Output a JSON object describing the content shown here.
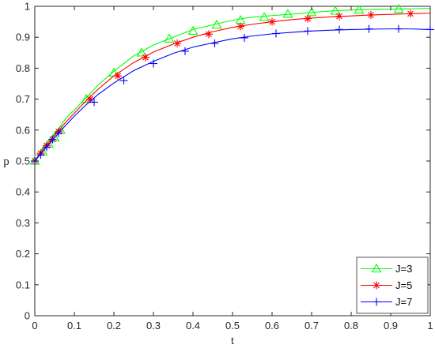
{
  "chart_data": {
    "type": "line",
    "title": "",
    "xlabel": "t",
    "ylabel": "p",
    "xlim": [
      0,
      1
    ],
    "ylim": [
      0,
      1
    ],
    "xticks": [
      0,
      0.1,
      0.2,
      0.3,
      0.4,
      0.5,
      0.6,
      0.7,
      0.8,
      0.9,
      1
    ],
    "xtick_labels": [
      "0",
      "0.1",
      "0.2",
      "0.3",
      "0.4",
      "0.5",
      "0.6",
      "0.7",
      "0.8",
      "0.9",
      "1"
    ],
    "yticks": [
      0,
      0.1,
      0.2,
      0.3,
      0.4,
      0.5,
      0.6,
      0.7,
      0.8,
      0.9,
      1
    ],
    "ytick_labels": [
      "0",
      "0.1",
      "0.2",
      "0.3",
      "0.4",
      "0.5",
      "0.6",
      "0.7",
      "0.8",
      "0.9",
      "1"
    ],
    "grid": false,
    "legend_position": "bottom-right",
    "series": [
      {
        "name": "J=3",
        "color": "#00ff00",
        "marker": "triangle",
        "line_points": {
          "x": [
            0,
            0.01,
            0.02,
            0.03,
            0.04,
            0.05,
            0.06,
            0.08,
            0.1,
            0.13,
            0.16,
            0.2,
            0.25,
            0.3,
            0.35,
            0.4,
            0.45,
            0.5,
            0.55,
            0.6,
            0.65,
            0.7,
            0.75,
            0.8,
            0.85,
            0.9,
            0.95,
            1
          ],
          "y": [
            0.5,
            0.52,
            0.54,
            0.56,
            0.575,
            0.59,
            0.605,
            0.64,
            0.665,
            0.705,
            0.745,
            0.79,
            0.84,
            0.875,
            0.9,
            0.925,
            0.94,
            0.955,
            0.965,
            0.97,
            0.975,
            0.98,
            0.985,
            0.988,
            0.99,
            0.991,
            0.992,
            0.993
          ]
        },
        "markers": {
          "x": [
            0,
            0.02,
            0.035,
            0.05,
            0.065,
            0.13,
            0.2,
            0.27,
            0.34,
            0.4,
            0.46,
            0.52,
            0.58,
            0.64,
            0.7,
            0.76,
            0.82,
            0.92
          ],
          "y": [
            0.5,
            0.53,
            0.555,
            0.575,
            0.6,
            0.7,
            0.785,
            0.85,
            0.895,
            0.92,
            0.94,
            0.955,
            0.965,
            0.975,
            0.98,
            0.985,
            0.988,
            0.991
          ]
        }
      },
      {
        "name": "J=5",
        "color": "#ff0000",
        "marker": "asterisk",
        "line_points": {
          "x": [
            0,
            0.01,
            0.02,
            0.03,
            0.04,
            0.05,
            0.06,
            0.08,
            0.1,
            0.13,
            0.16,
            0.2,
            0.25,
            0.3,
            0.35,
            0.4,
            0.45,
            0.5,
            0.55,
            0.6,
            0.65,
            0.7,
            0.75,
            0.8,
            0.85,
            0.9,
            0.95,
            1
          ],
          "y": [
            0.5,
            0.518,
            0.535,
            0.552,
            0.568,
            0.583,
            0.598,
            0.628,
            0.655,
            0.695,
            0.732,
            0.775,
            0.818,
            0.852,
            0.878,
            0.9,
            0.918,
            0.932,
            0.942,
            0.95,
            0.957,
            0.962,
            0.966,
            0.969,
            0.972,
            0.974,
            0.976,
            0.978
          ]
        },
        "markers": {
          "x": [
            0,
            0.015,
            0.03,
            0.045,
            0.06,
            0.14,
            0.21,
            0.28,
            0.36,
            0.44,
            0.52,
            0.6,
            0.69,
            0.77,
            0.85,
            0.95
          ],
          "y": [
            0.5,
            0.525,
            0.55,
            0.57,
            0.595,
            0.7,
            0.775,
            0.835,
            0.88,
            0.91,
            0.935,
            0.95,
            0.96,
            0.968,
            0.972,
            0.976
          ]
        }
      },
      {
        "name": "J=7",
        "color": "#0000ff",
        "marker": "plus",
        "line_points": {
          "x": [
            0,
            0.01,
            0.02,
            0.03,
            0.04,
            0.05,
            0.06,
            0.08,
            0.1,
            0.13,
            0.16,
            0.2,
            0.25,
            0.3,
            0.35,
            0.4,
            0.45,
            0.5,
            0.55,
            0.6,
            0.65,
            0.7,
            0.75,
            0.8,
            0.85,
            0.9,
            0.95,
            1
          ],
          "y": [
            0.5,
            0.515,
            0.53,
            0.545,
            0.56,
            0.575,
            0.59,
            0.618,
            0.645,
            0.682,
            0.715,
            0.752,
            0.792,
            0.822,
            0.848,
            0.868,
            0.882,
            0.895,
            0.904,
            0.911,
            0.916,
            0.92,
            0.923,
            0.925,
            0.926,
            0.927,
            0.927,
            0.925
          ]
        },
        "markers": {
          "x": [
            0,
            0.015,
            0.03,
            0.045,
            0.06,
            0.15,
            0.225,
            0.3,
            0.38,
            0.455,
            0.53,
            0.61,
            0.69,
            0.77,
            0.845,
            0.92,
            1
          ],
          "y": [
            0.5,
            0.52,
            0.545,
            0.57,
            0.59,
            0.69,
            0.76,
            0.815,
            0.855,
            0.88,
            0.898,
            0.912,
            0.92,
            0.925,
            0.927,
            0.927,
            0.925
          ]
        }
      }
    ]
  }
}
